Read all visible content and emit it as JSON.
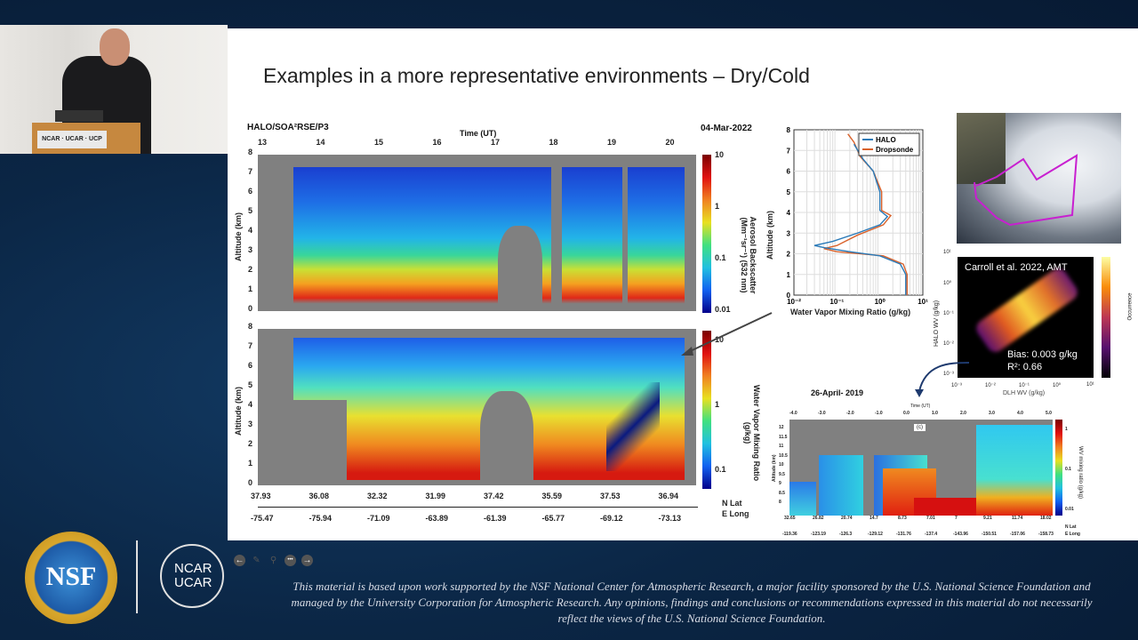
{
  "video": {
    "podium_sign": "NCAR · UCAR · UCP"
  },
  "slide": {
    "title": "Examples in a more representative environments – Dry/Cold",
    "curtain": {
      "platform": "HALO/SOA²RSE/P3",
      "date": "04-Mar-2022",
      "time_label": "Time (UT)",
      "time_ticks": [
        "13",
        "14",
        "15",
        "16",
        "17",
        "18",
        "19",
        "20"
      ],
      "alt_ticks": [
        "0",
        "1",
        "2",
        "3",
        "4",
        "5",
        "6",
        "7",
        "8"
      ],
      "alt_label": "Altitude (km)",
      "aerosol_label": "Aerosol Backscatter (Mm⁻¹sr⁻¹) (532 nm)",
      "aerosol_ticks": [
        "10",
        "1",
        "0.1",
        "0.01"
      ],
      "wv_label": "Water Vapor Mixing Ratio (g/kg)",
      "wv_ticks": [
        "10",
        "1",
        "0.1"
      ],
      "lat_ticks": [
        "37.93",
        "36.08",
        "32.32",
        "31.99",
        "37.42",
        "35.59",
        "37.53",
        "36.94"
      ],
      "lon_ticks": [
        "-75.47",
        "-75.94",
        "-71.09",
        "-63.89",
        "-61.39",
        "-65.77",
        "-69.12",
        "-73.13"
      ],
      "lat_label": "N Lat",
      "lon_label": "E Long"
    },
    "profile": {
      "xlabel": "Water Vapor Mixing Ratio (g/kg)",
      "ylabel": "Altitude (km)",
      "x_ticks": [
        "10⁻²",
        "10⁻¹",
        "10⁰",
        "10¹"
      ],
      "y_ticks": [
        "0",
        "1",
        "2",
        "3",
        "4",
        "5",
        "6",
        "7",
        "8"
      ],
      "legend": [
        "HALO",
        "Dropsonde"
      ],
      "colors": {
        "HALO": "#2a7ab8",
        "Dropsonde": "#d9622b"
      }
    },
    "scatter": {
      "citation": "Carroll et al. 2022, AMT",
      "bias": "Bias:  0.003 g/kg",
      "r2": "R²:  0.66",
      "xlabel": "DLH WV (g/kg)",
      "ylabel": "HALO WV (g/kg)",
      "colorbar_label": "Occurrence",
      "axis_ticks": [
        "10⁻³",
        "10⁻²",
        "10⁻¹",
        "10⁰",
        "10¹"
      ]
    },
    "april": {
      "title": "26-April- 2019",
      "time_label": "Time (UT)",
      "panel": "(c)",
      "time_ticks": [
        "-4.0",
        "-3.0",
        "-2.0",
        "-1.0",
        "0.0",
        "1.0",
        "2.0",
        "3.0",
        "4.0",
        "5.0"
      ],
      "alt_ticks": [
        "12",
        "11.5",
        "11",
        "10.5",
        "10",
        "9.5",
        "9",
        "8.5",
        "8"
      ],
      "alt_label": "Altitude (km)",
      "cbar_label": "WV mixing ratio (g/kg)",
      "cbar_ticks": [
        "1",
        "0.1",
        "0.01"
      ],
      "lat_ticks": [
        "32.65",
        "26.82",
        "20.74",
        "14.7",
        "8.73",
        "7.01",
        "7",
        "9.21",
        "11.74",
        "18.02"
      ],
      "lon_ticks": [
        "-119.36",
        "-123.19",
        "-126.3",
        "-129.12",
        "-131.76",
        "-137.4",
        "-143.96",
        "-150.51",
        "-157.06",
        "-158.73"
      ],
      "lat_label": "N Lat",
      "lon_label": "E Long"
    },
    "nav": [
      "previous",
      "pen",
      "zoom",
      "more",
      "next"
    ]
  },
  "footer": {
    "nsf_logo": "NSF",
    "ncar_logo": "NCAR UCAR",
    "disclaimer": [
      "This material is based upon work supported by the NSF National Center for Atmospheric Research, a major facility sponsored by the U.S. National Science Foundation and",
      "managed by the University Corporation for Atmospheric Research. Any opinions, findings and conclusions or recommendations expressed in this material do not necessarily",
      "reflect the views of the U.S. National Science Foundation."
    ]
  }
}
